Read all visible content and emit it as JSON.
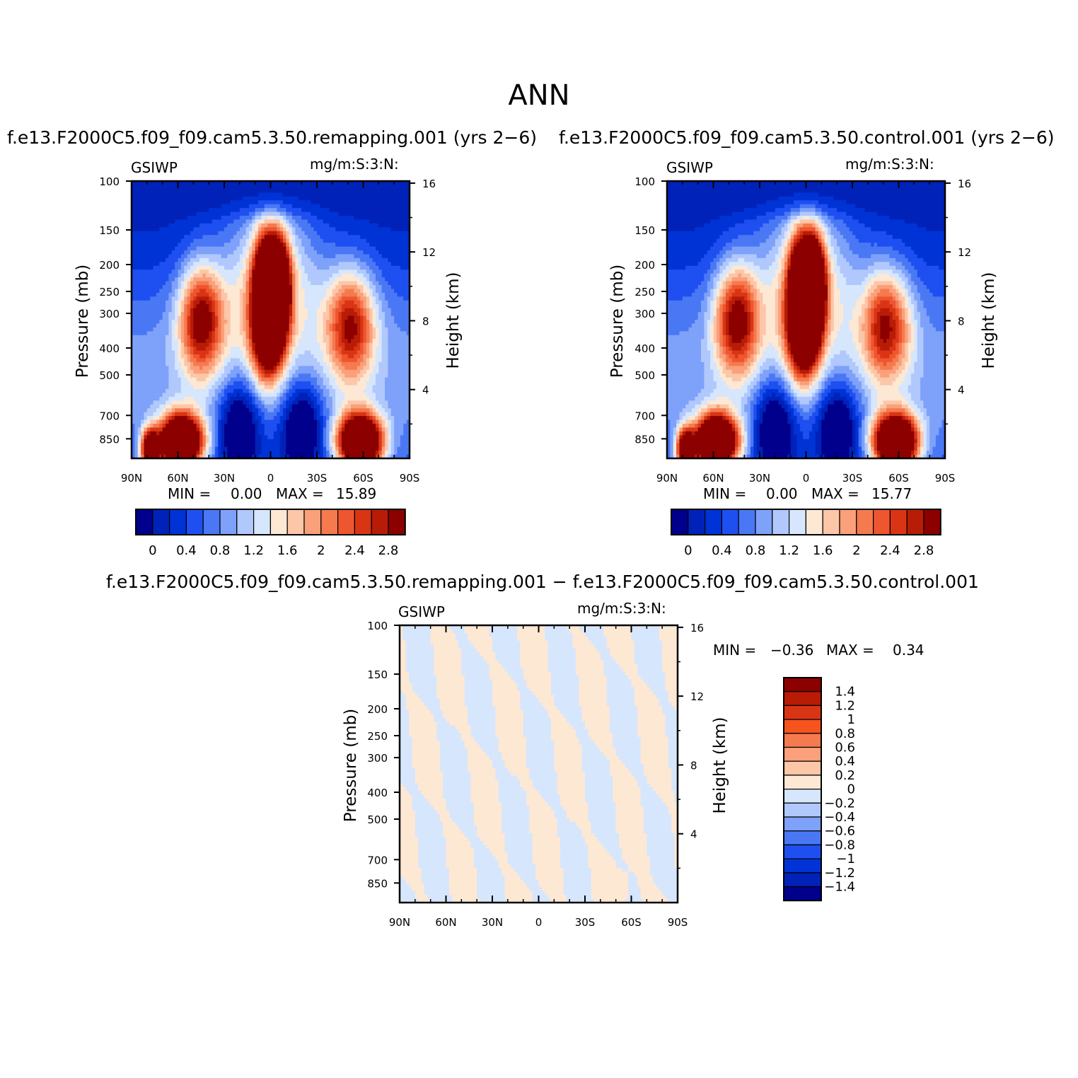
{
  "figure": {
    "title": "ANN"
  },
  "panels": [
    {
      "case": "f.e13.F2000C5.f09_f09.cam5.3.50.remapping.001  (yrs 2−6)",
      "variable": "GSIWP",
      "units": "mg/m:S:3:N:",
      "min_label": "MIN =",
      "min_value": "0.00",
      "max_label": "MAX =",
      "max_value": "15.89",
      "ylabel_left": "Pressure (mb)",
      "ylabel_right": "Height (km)"
    },
    {
      "case": "f.e13.F2000C5.f09_f09.cam5.3.50.control.001  (yrs 2−6)",
      "variable": "GSIWP",
      "units": "mg/m:S:3:N:",
      "min_label": "MIN =",
      "min_value": "0.00",
      "max_label": "MAX =",
      "max_value": "15.77",
      "ylabel_left": "Pressure (mb)",
      "ylabel_right": "Height (km)"
    },
    {
      "case": "f.e13.F2000C5.f09_f09.cam5.3.50.remapping.001 − f.e13.F2000C5.f09_f09.cam5.3.50.control.001",
      "variable": "GSIWP",
      "units": "mg/m:S:3:N:",
      "min_label": "MIN =",
      "min_value": "−0.36",
      "max_label": "MAX =",
      "max_value": "0.34",
      "ylabel_left": "Pressure (mb)",
      "ylabel_right": "Height (km)"
    }
  ],
  "chart_data": [
    {
      "type": "heatmap",
      "title": "f.e13.F2000C5.f09_f09.cam5.3.50.remapping.001  (yrs 2−6)",
      "x_ticks": [
        "90N",
        "60N",
        "30N",
        "0",
        "30S",
        "60S",
        "90S"
      ],
      "y_ticks_pressure": [
        "100",
        "150",
        "200",
        "250",
        "300",
        "400",
        "500",
        "700",
        "850"
      ],
      "y_ticks_height": [
        "16",
        "12",
        "8",
        "4"
      ],
      "yscale": "log",
      "colorbar_labels": [
        "0",
        "0.4",
        "0.8",
        "1.2",
        "1.6",
        "2",
        "2.4",
        "2.8"
      ],
      "colors": [
        "#00008c",
        "#0022b8",
        "#0033d6",
        "#1e4ff0",
        "#4a78f5",
        "#7ea1fa",
        "#b0c8fc",
        "#d6e6fd",
        "#fde8d4",
        "#fcc6a8",
        "#faa07a",
        "#f57a4e",
        "#ee5630",
        "#d93515",
        "#b81c06",
        "#8c0000"
      ],
      "min": 0.0,
      "max": 15.89
    },
    {
      "type": "heatmap",
      "title": "f.e13.F2000C5.f09_f09.cam5.3.50.control.001  (yrs 2−6)",
      "x_ticks": [
        "90N",
        "60N",
        "30N",
        "0",
        "30S",
        "60S",
        "90S"
      ],
      "y_ticks_pressure": [
        "100",
        "150",
        "200",
        "250",
        "300",
        "400",
        "500",
        "700",
        "850"
      ],
      "y_ticks_height": [
        "16",
        "12",
        "8",
        "4"
      ],
      "yscale": "log",
      "colorbar_labels": [
        "0",
        "0.4",
        "0.8",
        "1.2",
        "1.6",
        "2",
        "2.4",
        "2.8"
      ],
      "min": 0.0,
      "max": 15.77
    },
    {
      "type": "heatmap",
      "title": "f.e13.F2000C5.f09_f09.cam5.3.50.remapping.001 − f.e13.F2000C5.f09_f09.cam5.3.50.control.001",
      "x_ticks": [
        "90N",
        "60N",
        "30N",
        "0",
        "30S",
        "60S",
        "90S"
      ],
      "y_ticks_pressure": [
        "100",
        "150",
        "200",
        "250",
        "300",
        "400",
        "500",
        "700",
        "850"
      ],
      "y_ticks_height": [
        "16",
        "12",
        "8",
        "4"
      ],
      "yscale": "log",
      "colorbar_labels": [
        "1.4",
        "1.2",
        "1",
        "0.8",
        "0.6",
        "0.4",
        "0.2",
        "0",
        "−0.2",
        "−0.4",
        "−0.6",
        "−0.8",
        "−1",
        "−1.2",
        "−1.4"
      ],
      "colors": [
        "#8c0000",
        "#b81c06",
        "#d93515",
        "#f5541f",
        "#f57a4e",
        "#faa07a",
        "#fcc6a8",
        "#fde8d4",
        "#d6e6fd",
        "#b0c8fc",
        "#7ea1fa",
        "#4a78f5",
        "#1e4ff0",
        "#0033d6",
        "#0022b8",
        "#00008c"
      ],
      "min": -0.36,
      "max": 0.34
    }
  ]
}
